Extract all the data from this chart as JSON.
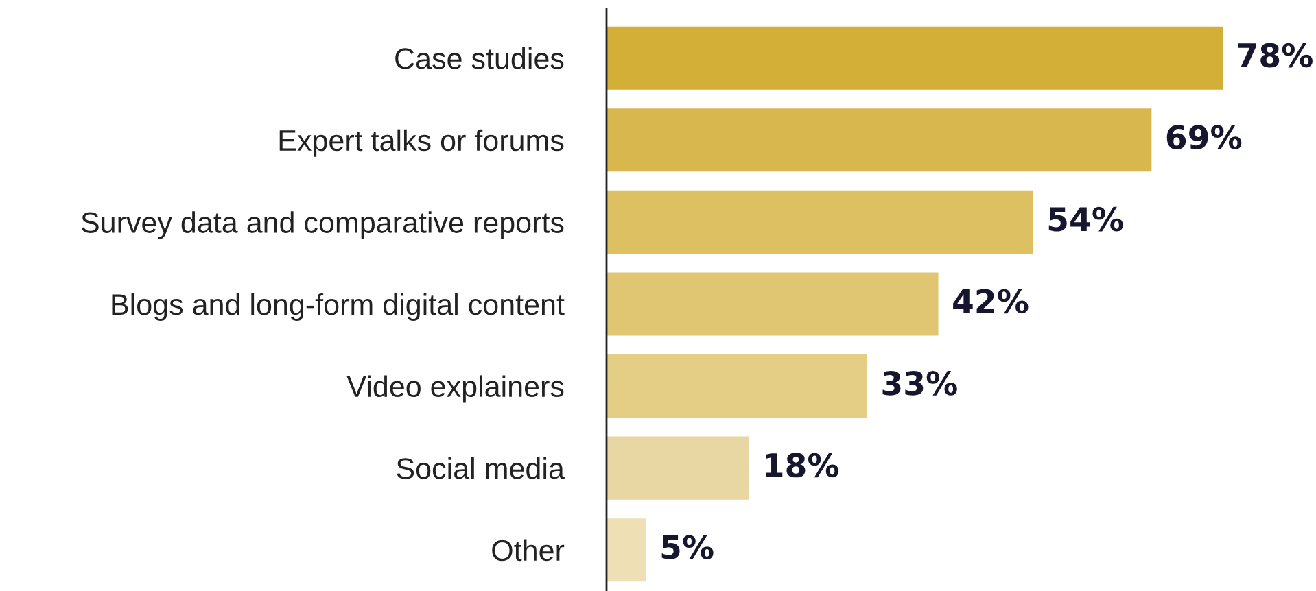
{
  "chart_data": {
    "type": "bar",
    "orientation": "horizontal",
    "categories": [
      "Case studies",
      "Expert talks or forums",
      "Survey data and comparative reports",
      "Blogs and long-form digital content",
      "Video explainers",
      "Social media",
      "Other"
    ],
    "values": [
      78,
      69,
      54,
      42,
      33,
      18,
      5
    ],
    "colors": [
      "#d4af37",
      "#d8b84e",
      "#dcc062",
      "#e0c672",
      "#e4cd85",
      "#e8d7a2",
      "#eedfb4"
    ],
    "value_labels": [
      "78%",
      "69%",
      "54%",
      "42%",
      "33%",
      "18%",
      "5%"
    ],
    "tick_labels": "y",
    "grid": false,
    "legend": false
  }
}
